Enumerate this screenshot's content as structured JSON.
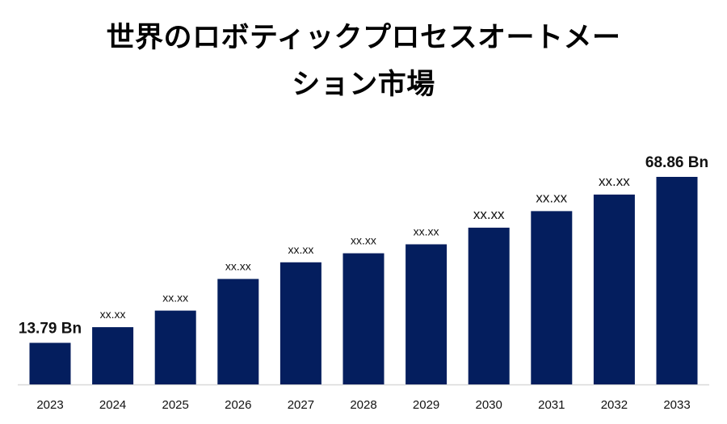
{
  "chart_data": {
    "type": "bar",
    "title_line1": "世界のロボティックプロセスオートメー",
    "title_line2": "ション市場",
    "categories": [
      "2023",
      "2024",
      "2025",
      "2026",
      "2027",
      "2028",
      "2029",
      "2030",
      "2031",
      "2032",
      "2033"
    ],
    "values": [
      13.79,
      19.0,
      24.5,
      35.0,
      40.5,
      43.5,
      46.5,
      52.0,
      57.5,
      63.0,
      68.86
    ],
    "data_labels": [
      "13.79 Bn",
      "xx.xx",
      "xx.xx",
      "xx.xx",
      "xx.xx",
      "xx.xx",
      "xx.xx",
      "xx.xx",
      "xx.xx",
      "xx.xx",
      "68.86 Bn"
    ],
    "xlabel": "",
    "ylabel": "",
    "ylim": [
      0,
      68.86
    ],
    "grid": false,
    "legend": "none",
    "bar_color": "#041E5E",
    "axis_color": "#D9D9D9"
  }
}
